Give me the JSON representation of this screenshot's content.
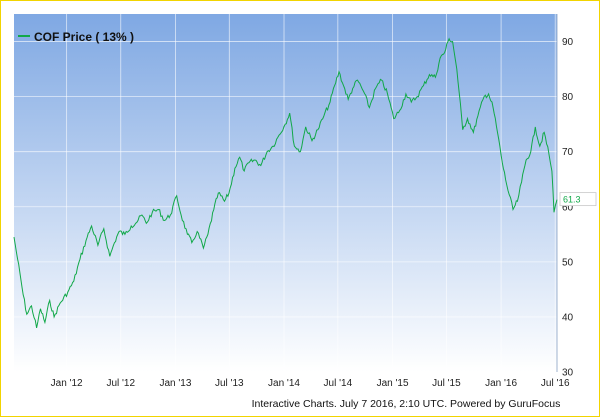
{
  "legend": {
    "label": "COF Price ( 13% )"
  },
  "credits": "Interactive Charts. July 7 2016, 2:10 UTC. Powered by GuruFocus",
  "colors": {
    "line": "#11a848",
    "plot_top": "#7fa8e3",
    "plot_bottom": "#ffffff",
    "frame": "#f2d400"
  },
  "chart_data": {
    "type": "line",
    "title": "",
    "xlabel": "",
    "ylabel": "",
    "ylim": [
      30,
      95
    ],
    "yticks": [
      30,
      40,
      50,
      60,
      70,
      80,
      90
    ],
    "xlim": [
      "2011-07-08",
      "2016-07-07"
    ],
    "xticks": [
      {
        "label": "Jan '12",
        "date": "2012-01-01"
      },
      {
        "label": "Jul '12",
        "date": "2012-07-01"
      },
      {
        "label": "Jan '13",
        "date": "2013-01-01"
      },
      {
        "label": "Jul '13",
        "date": "2013-07-01"
      },
      {
        "label": "Jan '14",
        "date": "2014-01-01"
      },
      {
        "label": "Jul '14",
        "date": "2014-07-01"
      },
      {
        "label": "Jan '15",
        "date": "2015-01-01"
      },
      {
        "label": "Jul '15",
        "date": "2015-07-01"
      },
      {
        "label": "Jan '16",
        "date": "2016-01-01"
      },
      {
        "label": "Jul '16",
        "date": "2016-07-01"
      }
    ],
    "last_value_label": "61.3",
    "series": [
      {
        "name": "COF Price ( 13% )",
        "points": [
          [
            "2011-07-08",
            54.5
          ],
          [
            "2011-07-20",
            50.5
          ],
          [
            "2011-08-08",
            44.0
          ],
          [
            "2011-08-20",
            40.5
          ],
          [
            "2011-09-05",
            42.0
          ],
          [
            "2011-09-22",
            38.0
          ],
          [
            "2011-10-05",
            41.5
          ],
          [
            "2011-10-20",
            39.0
          ],
          [
            "2011-11-05",
            43.0
          ],
          [
            "2011-11-20",
            40.0
          ],
          [
            "2011-12-10",
            42.5
          ],
          [
            "2012-01-05",
            44.5
          ],
          [
            "2012-01-25",
            46.5
          ],
          [
            "2012-02-15",
            50.5
          ],
          [
            "2012-03-10",
            54.5
          ],
          [
            "2012-03-25",
            56.5
          ],
          [
            "2012-04-15",
            53.0
          ],
          [
            "2012-05-05",
            56.0
          ],
          [
            "2012-05-25",
            51.0
          ],
          [
            "2012-06-10",
            53.5
          ],
          [
            "2012-06-25",
            55.5
          ],
          [
            "2012-07-15",
            55.0
          ],
          [
            "2012-08-05",
            56.5
          ],
          [
            "2012-08-20",
            57.0
          ],
          [
            "2012-09-10",
            58.5
          ],
          [
            "2012-09-25",
            57.0
          ],
          [
            "2012-10-15",
            59.0
          ],
          [
            "2012-11-05",
            59.5
          ],
          [
            "2012-11-25",
            57.5
          ],
          [
            "2012-12-15",
            58.5
          ],
          [
            "2013-01-05",
            62.0
          ],
          [
            "2013-01-20",
            58.5
          ],
          [
            "2013-02-10",
            55.0
          ],
          [
            "2013-02-25",
            53.5
          ],
          [
            "2013-03-15",
            55.5
          ],
          [
            "2013-04-05",
            52.5
          ],
          [
            "2013-04-20",
            55.0
          ],
          [
            "2013-05-10",
            59.5
          ],
          [
            "2013-05-25",
            62.5
          ],
          [
            "2013-06-15",
            61.0
          ],
          [
            "2013-06-30",
            62.5
          ],
          [
            "2013-07-20",
            67.0
          ],
          [
            "2013-08-05",
            69.0
          ],
          [
            "2013-08-20",
            66.5
          ],
          [
            "2013-09-05",
            68.0
          ],
          [
            "2013-09-25",
            68.5
          ],
          [
            "2013-10-15",
            67.5
          ],
          [
            "2013-11-05",
            70.0
          ],
          [
            "2013-11-25",
            71.0
          ],
          [
            "2013-12-15",
            73.0
          ],
          [
            "2014-01-05",
            75.0
          ],
          [
            "2014-01-20",
            77.0
          ],
          [
            "2014-02-05",
            71.0
          ],
          [
            "2014-02-25",
            70.0
          ],
          [
            "2014-03-15",
            74.5
          ],
          [
            "2014-04-05",
            72.0
          ],
          [
            "2014-04-25",
            74.0
          ],
          [
            "2014-05-15",
            76.5
          ],
          [
            "2014-06-05",
            79.0
          ],
          [
            "2014-06-20",
            82.0
          ],
          [
            "2014-07-05",
            84.5
          ],
          [
            "2014-07-20",
            82.0
          ],
          [
            "2014-08-05",
            79.5
          ],
          [
            "2014-08-20",
            81.5
          ],
          [
            "2014-09-05",
            83.0
          ],
          [
            "2014-09-25",
            81.0
          ],
          [
            "2014-10-15",
            78.0
          ],
          [
            "2014-11-05",
            81.5
          ],
          [
            "2014-11-25",
            83.0
          ],
          [
            "2014-12-15",
            80.5
          ],
          [
            "2015-01-05",
            76.0
          ],
          [
            "2015-01-25",
            77.5
          ],
          [
            "2015-02-15",
            80.5
          ],
          [
            "2015-03-05",
            79.0
          ],
          [
            "2015-03-25",
            80.0
          ],
          [
            "2015-04-15",
            82.0
          ],
          [
            "2015-05-05",
            84.0
          ],
          [
            "2015-05-25",
            83.5
          ],
          [
            "2015-06-10",
            87.0
          ],
          [
            "2015-06-25",
            88.0
          ],
          [
            "2015-07-10",
            90.5
          ],
          [
            "2015-07-22",
            90.0
          ],
          [
            "2015-08-05",
            85.0
          ],
          [
            "2015-08-25",
            74.0
          ],
          [
            "2015-09-10",
            76.0
          ],
          [
            "2015-09-30",
            73.5
          ],
          [
            "2015-10-15",
            76.5
          ],
          [
            "2015-11-05",
            80.0
          ],
          [
            "2015-11-20",
            80.5
          ],
          [
            "2015-12-05",
            78.0
          ],
          [
            "2015-12-20",
            73.5
          ],
          [
            "2016-01-05",
            68.0
          ],
          [
            "2016-01-20",
            64.0
          ],
          [
            "2016-02-10",
            59.5
          ],
          [
            "2016-02-25",
            61.0
          ],
          [
            "2016-03-10",
            64.5
          ],
          [
            "2016-03-25",
            68.5
          ],
          [
            "2016-04-10",
            70.0
          ],
          [
            "2016-04-25",
            74.5
          ],
          [
            "2016-05-10",
            71.0
          ],
          [
            "2016-05-25",
            73.5
          ],
          [
            "2016-06-10",
            69.5
          ],
          [
            "2016-06-20",
            66.5
          ],
          [
            "2016-06-27",
            59.0
          ],
          [
            "2016-07-07",
            61.3
          ]
        ]
      }
    ]
  }
}
